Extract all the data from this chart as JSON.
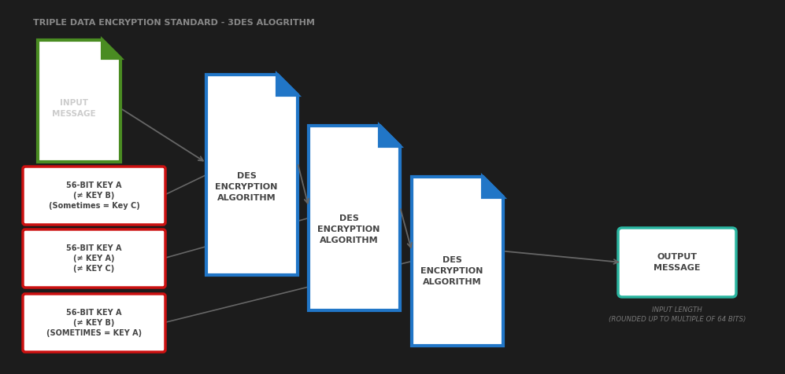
{
  "title": "TRIPLE DATA ENCRYPTION STANDARD - 3DES ALOGRITHM",
  "bg_color": "#1c1c1c",
  "title_color": "#888888",
  "title_fontsize": 8.0,
  "input_msg_text": "INPUT\nMESSAGE",
  "input_msg_color": "#4a8c22",
  "des_color": "#2176c7",
  "des_text": "DES\nENCRYPTION\nALGORITHM",
  "key_boxes": [
    {
      "text": "56-BIT KEY A\n(≠ KEY B)\n(Sometimes = Key C)"
    },
    {
      "text": "56-BIT KEY A\n(≠ KEY A)\n(≠ KEY C)"
    },
    {
      "text": "56-BIT KEY A\n(≠ KEY B)\n(SOMETIMES = KEY A)"
    }
  ],
  "key_color": "#cc1111",
  "output_text": "OUTPUT\nMESSAGE",
  "output_color": "#2ab5a0",
  "output_note": "INPUT LENGTH\n(ROUNDED UP TO MULTIPLE OF 64 BITS)",
  "text_color": "#333333",
  "dim_text_color": "#777777",
  "arrow_color": "#666666"
}
